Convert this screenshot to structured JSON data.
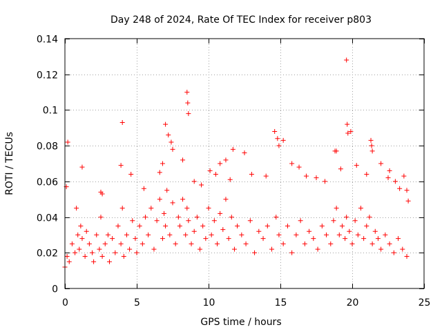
{
  "chart_data": {
    "type": "scatter",
    "title": "Day 248 of 2024, Rate Of TEC Index for receiver p803",
    "xlabel": "GPS time / hours",
    "ylabel": "ROTI / TECUs",
    "xlim": [
      0,
      25
    ],
    "ylim": [
      0,
      0.14
    ],
    "xticks": [
      0,
      5,
      10,
      15,
      20,
      25
    ],
    "xtick_labels": [
      "0",
      "5",
      "10",
      "15",
      "20",
      "25"
    ],
    "yticks": [
      0,
      0.02,
      0.04,
      0.06,
      0.08,
      0.1,
      0.12,
      0.14
    ],
    "ytick_labels": [
      "0",
      "0.02",
      "0.04",
      "0.06",
      "0.08",
      "0.1",
      "0.12",
      "0.14"
    ],
    "grid": true,
    "marker": "+",
    "series_color": "#ff0000",
    "grid_color": "#a0a0a0",
    "data_points_x": [
      0.0,
      0.15,
      0.3,
      0.5,
      0.7,
      0.9,
      1.0,
      1.1,
      1.2,
      1.4,
      1.5,
      1.7,
      1.9,
      2.0,
      2.2,
      2.4,
      2.5,
      2.6,
      2.8,
      3.0,
      3.1,
      3.3,
      3.5,
      3.7,
      3.9,
      4.0,
      4.1,
      4.3,
      4.5,
      4.7,
      4.9,
      5.0,
      5.2,
      5.4,
      5.6,
      5.8,
      6.0,
      6.2,
      6.4,
      6.6,
      6.8,
      6.9,
      7.0,
      7.1,
      7.3,
      7.5,
      7.7,
      7.9,
      8.0,
      8.2,
      8.4,
      8.5,
      8.6,
      8.8,
      9.0,
      9.2,
      9.4,
      9.6,
      9.8,
      10.0,
      10.2,
      10.4,
      10.6,
      10.8,
      11.0,
      11.2,
      11.4,
      11.6,
      11.8,
      12.0,
      12.3,
      12.6,
      12.9,
      13.2,
      13.5,
      13.8,
      14.1,
      14.4,
      14.7,
      14.9,
      15.2,
      15.5,
      15.8,
      16.1,
      16.4,
      16.7,
      17.0,
      17.3,
      17.6,
      17.9,
      18.2,
      18.5,
      18.7,
      18.9,
      19.1,
      19.3,
      19.5,
      19.6,
      19.8,
      20.0,
      20.2,
      20.4,
      20.6,
      20.8,
      21.0,
      21.2,
      21.4,
      21.6,
      21.8,
      22.0,
      22.3,
      22.6,
      22.9,
      23.2,
      23.5,
      23.8,
      0.1,
      0.2,
      0.8,
      1.2,
      2.5,
      2.6,
      3.9,
      4.0,
      4.6,
      5.5,
      6.6,
      6.8,
      7.0,
      7.2,
      7.4,
      7.5,
      8.2,
      8.5,
      8.55,
      8.6,
      9.0,
      9.5,
      10.1,
      10.5,
      10.8,
      11.2,
      11.5,
      11.7,
      12.5,
      13.0,
      14.0,
      14.6,
      14.8,
      14.9,
      15.2,
      15.8,
      16.3,
      16.8,
      17.5,
      18.1,
      18.8,
      18.9,
      19.2,
      19.6,
      19.65,
      19.7,
      19.9,
      20.3,
      21.0,
      21.3,
      21.35,
      21.4,
      22.0,
      22.5,
      22.6,
      23.0,
      23.3,
      23.6,
      23.8,
      23.9
    ],
    "data_points_y": [
      0.012,
      0.018,
      0.015,
      0.025,
      0.02,
      0.03,
      0.022,
      0.035,
      0.028,
      0.018,
      0.032,
      0.025,
      0.02,
      0.015,
      0.03,
      0.022,
      0.04,
      0.018,
      0.025,
      0.03,
      0.015,
      0.028,
      0.02,
      0.035,
      0.025,
      0.045,
      0.018,
      0.03,
      0.022,
      0.038,
      0.028,
      0.02,
      0.035,
      0.025,
      0.04,
      0.03,
      0.045,
      0.022,
      0.038,
      0.05,
      0.028,
      0.042,
      0.035,
      0.055,
      0.03,
      0.048,
      0.025,
      0.04,
      0.035,
      0.05,
      0.03,
      0.045,
      0.038,
      0.025,
      0.032,
      0.04,
      0.022,
      0.035,
      0.028,
      0.045,
      0.03,
      0.038,
      0.025,
      0.042,
      0.033,
      0.05,
      0.028,
      0.04,
      0.022,
      0.035,
      0.03,
      0.025,
      0.038,
      0.02,
      0.032,
      0.028,
      0.035,
      0.022,
      0.04,
      0.03,
      0.025,
      0.035,
      0.02,
      0.03,
      0.038,
      0.025,
      0.032,
      0.028,
      0.022,
      0.035,
      0.03,
      0.025,
      0.038,
      0.045,
      0.03,
      0.035,
      0.028,
      0.04,
      0.032,
      0.025,
      0.038,
      0.03,
      0.045,
      0.028,
      0.035,
      0.04,
      0.025,
      0.032,
      0.028,
      0.022,
      0.03,
      0.025,
      0.02,
      0.028,
      0.022,
      0.018,
      0.057,
      0.082,
      0.045,
      0.068,
      0.054,
      0.053,
      0.069,
      0.093,
      0.064,
      0.056,
      0.065,
      0.07,
      0.092,
      0.086,
      0.082,
      0.078,
      0.072,
      0.11,
      0.104,
      0.098,
      0.06,
      0.058,
      0.066,
      0.064,
      0.07,
      0.072,
      0.061,
      0.078,
      0.076,
      0.064,
      0.063,
      0.088,
      0.084,
      0.08,
      0.083,
      0.07,
      0.068,
      0.063,
      0.062,
      0.06,
      0.077,
      0.077,
      0.067,
      0.128,
      0.092,
      0.087,
      0.088,
      0.069,
      0.064,
      0.083,
      0.08,
      0.077,
      0.07,
      0.062,
      0.066,
      0.06,
      0.056,
      0.063,
      0.055,
      0.049
    ],
    "series": [
      {
        "name": "ROTI",
        "color": "#ff0000"
      }
    ]
  }
}
